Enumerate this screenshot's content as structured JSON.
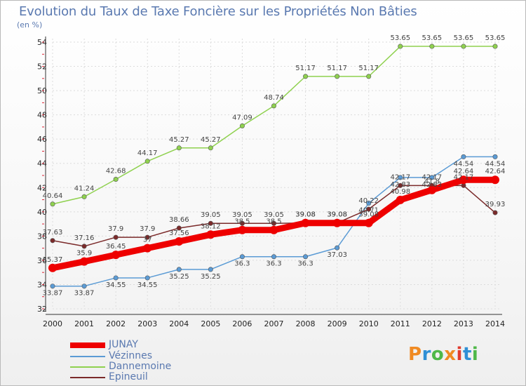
{
  "header": {
    "title": "Evolution du Taux de Taxe Foncière sur les Propriétés Non Bâties",
    "unit": "(en %)"
  },
  "logo": {
    "text": "Proxiti",
    "colors": [
      "#f08a22",
      "#2f8fd5",
      "#4fb848",
      "#f08a22",
      "#e03c2f",
      "#2f8fd5",
      "#4fb848"
    ]
  },
  "chart_data": {
    "type": "line",
    "title": "Evolution du Taux de Taxe Foncière sur les Propriétés Non Bâties",
    "ylabel": "(en %)",
    "xlabel": "",
    "x": [
      "2000",
      "2001",
      "2002",
      "2003",
      "2004",
      "2005",
      "2006",
      "2007",
      "2008",
      "2009",
      "2010",
      "2011",
      "2012",
      "2013",
      "2014"
    ],
    "ylim": [
      32,
      54
    ],
    "yticks": [
      32,
      34,
      36,
      38,
      40,
      42,
      44,
      46,
      48,
      50,
      52,
      54
    ],
    "grid": true,
    "legend_position": "bottom-left",
    "series": [
      {
        "name": "JUNAY",
        "color": "#ee0000",
        "values": [
          35.37,
          35.9,
          36.45,
          37.0,
          37.56,
          38.12,
          38.5,
          38.5,
          39.08,
          39.08,
          39.08,
          40.98,
          41.8,
          42.64,
          42.64
        ],
        "labels": [
          "35.37",
          "35.9",
          "36.45",
          "37",
          "37.56",
          "38.12",
          "38.5",
          "38.5",
          "39.08",
          "39.08",
          "39.08",
          "40.98",
          "41.8",
          "42.64",
          "42.64"
        ]
      },
      {
        "name": "Vézinnes",
        "color": "#5b9bd5",
        "values": [
          33.87,
          33.87,
          34.55,
          34.55,
          35.25,
          35.25,
          36.3,
          36.3,
          36.3,
          37.03,
          40.71,
          42.83,
          42.83,
          44.54,
          44.54
        ],
        "labels": [
          "33.87",
          "33.87",
          "34.55",
          "34.55",
          "35.25",
          "35.25",
          "36.3",
          "36.3",
          "36.3",
          "37.03",
          "40.71",
          "42.83",
          "42.83",
          "44.54",
          "44.54"
        ]
      },
      {
        "name": "Dannemoine",
        "color": "#8fd14f",
        "values": [
          40.64,
          41.24,
          42.68,
          44.17,
          45.27,
          45.27,
          47.09,
          48.74,
          51.17,
          51.17,
          51.17,
          53.65,
          53.65,
          53.65,
          53.65
        ],
        "labels": [
          "40.64",
          "41.24",
          "42.68",
          "44.17",
          "45.27",
          "45.27",
          "47.09",
          "48.74",
          "51.17",
          "51.17",
          "51.17",
          "53.65",
          "53.65",
          "53.65",
          "53.65"
        ]
      },
      {
        "name": "Epineuil",
        "color": "#7b2a2a",
        "values": [
          37.63,
          37.16,
          37.9,
          37.9,
          38.66,
          39.05,
          39.05,
          39.05,
          39.08,
          39.08,
          40.22,
          42.17,
          42.17,
          42.17,
          39.93
        ],
        "labels": [
          "37.63",
          "37.16",
          "37.9",
          "37.9",
          "38.66",
          "39.05",
          "39.05",
          "39.05",
          "39.08",
          "39.08",
          "40.22",
          "42.17",
          "42.17",
          "42.17",
          "39.93"
        ]
      }
    ]
  }
}
